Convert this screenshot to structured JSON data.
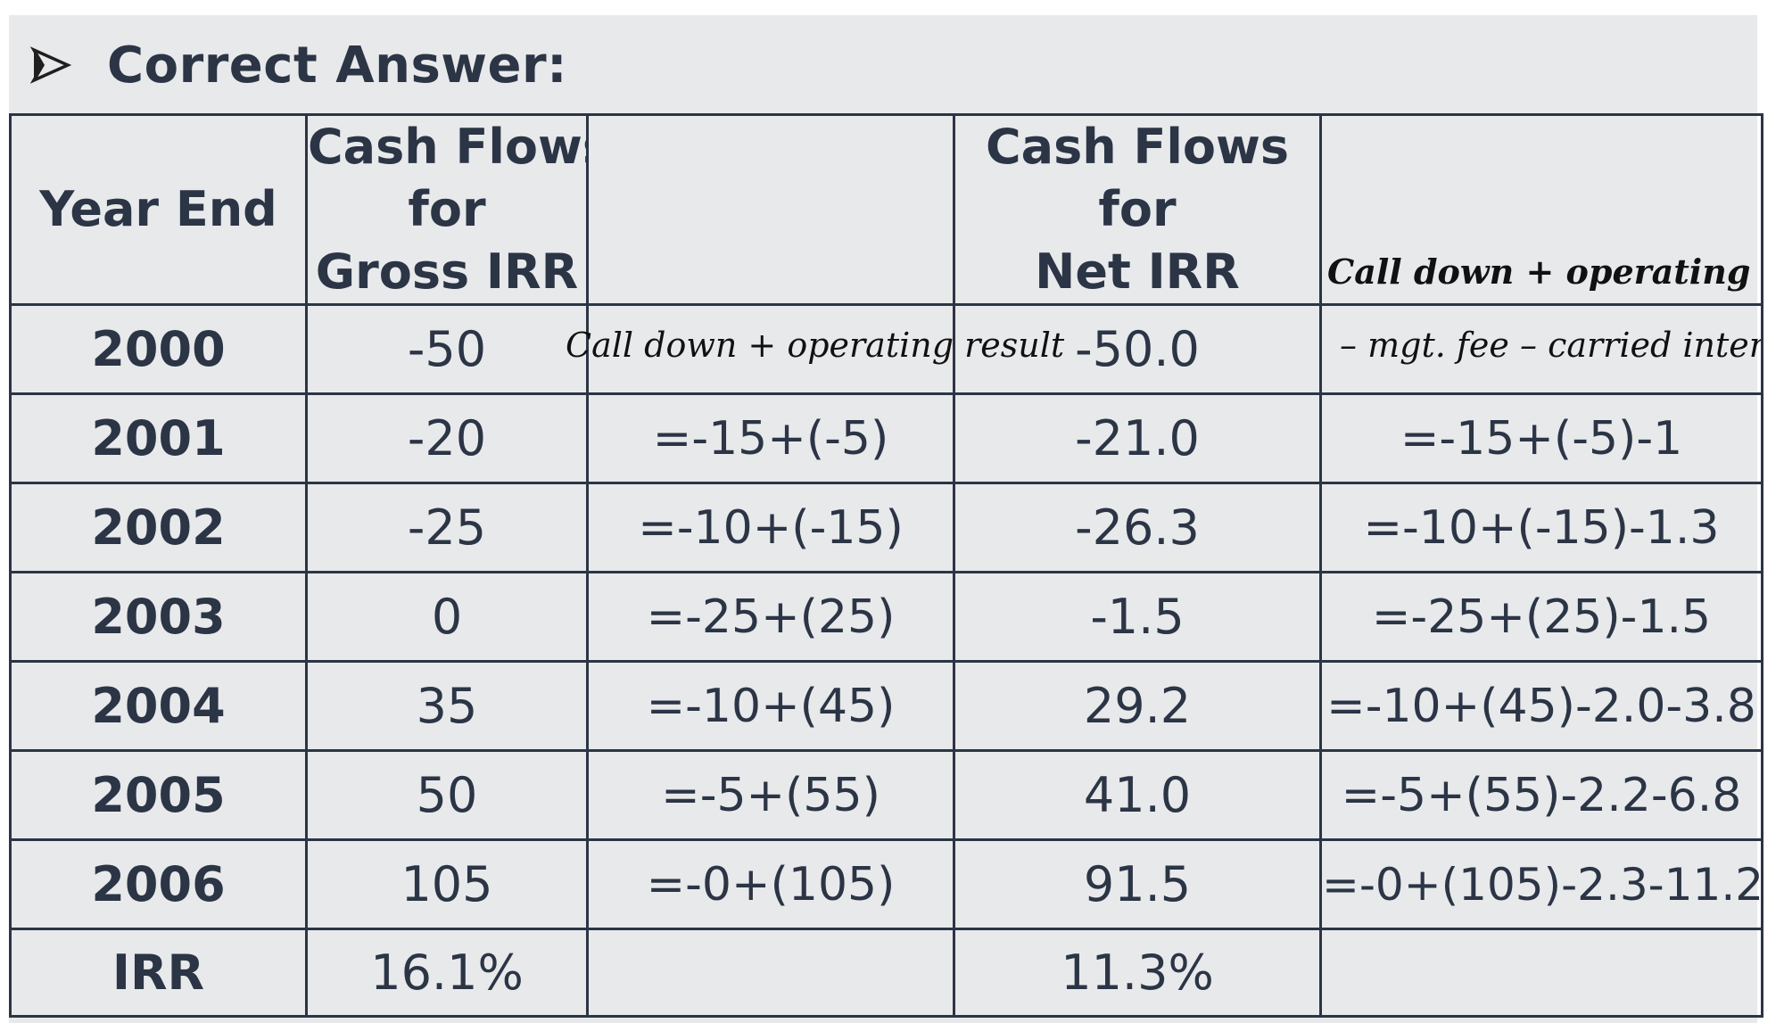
{
  "heading": {
    "title": "Correct Answer:",
    "icon": "arrow-right-icon"
  },
  "columns": {
    "year": "Year End",
    "gross_lines": [
      "Cash Flows",
      "for",
      "Gross IRR"
    ],
    "net_lines": [
      "Cash Flows",
      "for",
      "Net IRR"
    ]
  },
  "annotations": {
    "gross_note": "Call down + operating result",
    "net_note_line1": "Call down + operating result",
    "net_note_line2": "– mgt. fee – carried interest"
  },
  "rows": [
    {
      "year": "2000",
      "gross": "-50",
      "gross_formula": "",
      "net": "-50.0",
      "net_formula": ""
    },
    {
      "year": "2001",
      "gross": "-20",
      "gross_formula": "=-15+(-5)",
      "net": "-21.0",
      "net_formula": "=-15+(-5)-1"
    },
    {
      "year": "2002",
      "gross": "-25",
      "gross_formula": "=-10+(-15)",
      "net": "-26.3",
      "net_formula": "=-10+(-15)-1.3"
    },
    {
      "year": "2003",
      "gross": "0",
      "gross_formula": "=-25+(25)",
      "net": "-1.5",
      "net_formula": "=-25+(25)-1.5"
    },
    {
      "year": "2004",
      "gross": "35",
      "gross_formula": "=-10+(45)",
      "net": "29.2",
      "net_formula": "=-10+(45)-2.0-3.8"
    },
    {
      "year": "2005",
      "gross": "50",
      "gross_formula": "=-5+(55)",
      "net": "41.0",
      "net_formula": "=-5+(55)-2.2-6.8"
    },
    {
      "year": "2006",
      "gross": "105",
      "gross_formula": "=-0+(105)",
      "net": "91.5",
      "net_formula": "=-0+(105)-2.3-11.2"
    }
  ],
  "irr": {
    "label": "IRR",
    "gross": "16.1%",
    "net": "11.3%"
  }
}
